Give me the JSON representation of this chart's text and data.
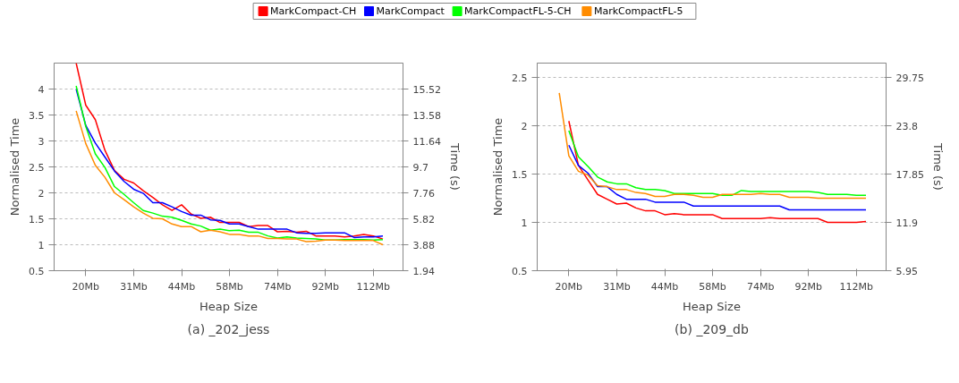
{
  "chart_data": [
    {
      "type": "line",
      "xlabel": "Heap Size",
      "ylabel": "Normalised Time",
      "y2label": "Time (s)",
      "categories": [
        null,
        "20Mb",
        null,
        null,
        null,
        null,
        "31Mb",
        null,
        null,
        null,
        null,
        "44Mb",
        null,
        null,
        null,
        null,
        "58Mb",
        null,
        null,
        null,
        null,
        "74Mb",
        null,
        null,
        null,
        null,
        "92Mb",
        null,
        null,
        null,
        null,
        "112Mb",
        null
      ],
      "ylim": [
        0.5,
        4.5
      ],
      "yticks": [
        0.5,
        1,
        1.5,
        2,
        2.5,
        3,
        3.5,
        4
      ],
      "y2lim": [
        1.94,
        17.46
      ],
      "y2ticks": [
        1.94,
        3.88,
        5.82,
        7.76,
        9.7,
        11.64,
        13.58,
        15.52
      ],
      "grid": "y",
      "legend": "top",
      "annotations": [
        "(a) _202_jess"
      ],
      "series": [
        {
          "name": "MarkCompact-CH",
          "color": "#ff0000",
          "values": [
            4.5,
            3.69,
            3.41,
            2.82,
            2.43,
            2.26,
            2.19,
            2.04,
            1.91,
            1.77,
            1.66,
            1.77,
            1.59,
            1.51,
            1.53,
            1.43,
            1.43,
            1.43,
            1.35,
            1.37,
            1.37,
            1.25,
            1.26,
            1.24,
            1.26,
            1.17,
            1.17,
            1.17,
            1.15,
            1.17,
            1.2,
            1.17,
            1.11
          ]
        },
        {
          "name": "MarkCompact",
          "color": "#0000ff",
          "values": [
            4.0,
            3.3,
            2.96,
            2.69,
            2.42,
            2.22,
            2.07,
            1.99,
            1.81,
            1.81,
            1.73,
            1.64,
            1.57,
            1.57,
            1.48,
            1.47,
            1.4,
            1.4,
            1.35,
            1.3,
            1.3,
            1.3,
            1.3,
            1.23,
            1.22,
            1.22,
            1.23,
            1.23,
            1.23,
            1.14,
            1.15,
            1.15,
            1.17
          ]
        },
        {
          "name": "MarkCompactFL-5-CH",
          "color": "#00ff00",
          "values": [
            4.06,
            3.28,
            2.75,
            2.49,
            2.12,
            1.97,
            1.81,
            1.66,
            1.61,
            1.55,
            1.53,
            1.47,
            1.4,
            1.36,
            1.28,
            1.3,
            1.27,
            1.28,
            1.24,
            1.24,
            1.17,
            1.13,
            1.15,
            1.13,
            1.12,
            1.11,
            1.09,
            1.09,
            1.1,
            1.1,
            1.1,
            1.09,
            1.1
          ]
        },
        {
          "name": "MarkCompactFL-5",
          "color": "#ff8c00",
          "values": [
            3.58,
            2.95,
            2.53,
            2.3,
            2.0,
            1.87,
            1.73,
            1.61,
            1.51,
            1.5,
            1.4,
            1.35,
            1.35,
            1.25,
            1.28,
            1.25,
            1.2,
            1.2,
            1.17,
            1.17,
            1.12,
            1.12,
            1.11,
            1.11,
            1.06,
            1.07,
            1.09,
            1.09,
            1.08,
            1.08,
            1.08,
            1.08,
            1.0
          ]
        }
      ]
    },
    {
      "type": "line",
      "xlabel": "Heap Size",
      "ylabel": "Normalised Time",
      "y2label": "Time (s)",
      "categories": [
        null,
        "20Mb",
        null,
        null,
        null,
        null,
        "31Mb",
        null,
        null,
        null,
        null,
        "44Mb",
        null,
        null,
        null,
        null,
        "58Mb",
        null,
        null,
        null,
        null,
        "74Mb",
        null,
        null,
        null,
        null,
        "92Mb",
        null,
        null,
        null,
        null,
        "112Mb",
        null
      ],
      "ylim": [
        0.5,
        2.65
      ],
      "yticks": [
        0.5,
        1,
        1.5,
        2,
        2.5
      ],
      "y2lim": [
        5.95,
        31.535
      ],
      "y2ticks": [
        5.95,
        11.9,
        17.85,
        23.8,
        29.75
      ],
      "grid": "y",
      "annotations": [
        "(b) _209_db"
      ],
      "series": [
        {
          "color": "#ff0000",
          "values": [
            null,
            2.05,
            1.59,
            1.44,
            1.29,
            1.24,
            1.19,
            1.2,
            1.15,
            1.12,
            1.12,
            1.08,
            1.09,
            1.08,
            1.08,
            1.08,
            1.08,
            1.04,
            1.04,
            1.04,
            1.04,
            1.04,
            1.05,
            1.04,
            1.04,
            1.04,
            1.04,
            1.04,
            1.0,
            1.0,
            1.0,
            1.0,
            1.01
          ]
        },
        {
          "color": "#0000ff",
          "values": [
            null,
            1.8,
            1.59,
            1.51,
            1.37,
            1.37,
            1.29,
            1.24,
            1.24,
            1.24,
            1.21,
            1.21,
            1.21,
            1.21,
            1.17,
            1.17,
            1.17,
            1.17,
            1.17,
            1.17,
            1.17,
            1.17,
            1.17,
            1.17,
            1.13,
            1.13,
            1.13,
            1.13,
            1.13,
            1.13,
            1.13,
            1.13,
            1.13
          ]
        },
        {
          "color": "#00ff00",
          "values": [
            null,
            1.95,
            1.68,
            1.58,
            1.47,
            1.42,
            1.4,
            1.4,
            1.36,
            1.34,
            1.34,
            1.33,
            1.3,
            1.3,
            1.3,
            1.3,
            1.3,
            1.28,
            1.28,
            1.33,
            1.32,
            1.32,
            1.32,
            1.32,
            1.32,
            1.32,
            1.32,
            1.31,
            1.29,
            1.29,
            1.29,
            1.28,
            1.28
          ]
        },
        {
          "color": "#ff8c00",
          "values": [
            2.34,
            1.69,
            1.53,
            1.49,
            1.38,
            1.37,
            1.34,
            1.34,
            1.31,
            1.3,
            1.27,
            1.27,
            1.29,
            1.29,
            1.28,
            1.26,
            1.26,
            1.29,
            1.29,
            1.29,
            1.29,
            1.3,
            1.29,
            1.29,
            1.26,
            1.26,
            1.26,
            1.25,
            1.25,
            1.25,
            1.25,
            1.25,
            1.25
          ]
        }
      ]
    }
  ]
}
